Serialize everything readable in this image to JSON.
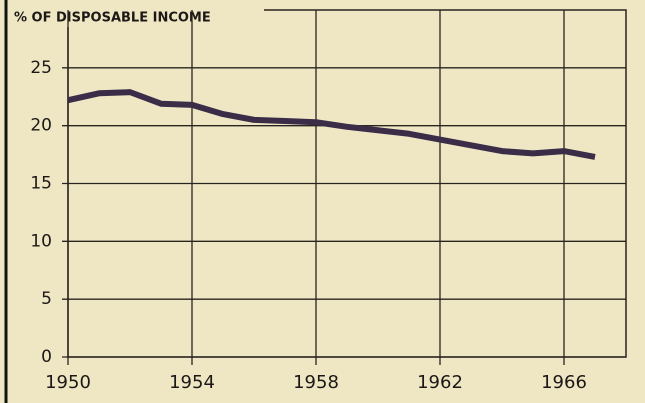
{
  "chart_data": {
    "type": "line",
    "title": "% OF DISPOSABLE INCOME",
    "x": [
      1950,
      1951,
      1952,
      1953,
      1954,
      1955,
      1956,
      1957,
      1958,
      1959,
      1960,
      1961,
      1962,
      1963,
      1964,
      1965,
      1966,
      1967
    ],
    "series": [
      {
        "color": "#3b2c48",
        "values": [
          22.2,
          22.8,
          22.9,
          21.9,
          21.8,
          21.0,
          20.5,
          20.4,
          20.3,
          19.9,
          19.6,
          19.3,
          18.8,
          18.3,
          17.8,
          17.6,
          17.8,
          17.3
        ]
      }
    ],
    "xlim": [
      1950,
      1968
    ],
    "xticks": [
      1950,
      1954,
      1958,
      1962,
      1966
    ],
    "ylim": [
      0,
      30
    ],
    "yticks": [
      0,
      5,
      10,
      15,
      20,
      25
    ],
    "grid": true
  }
}
